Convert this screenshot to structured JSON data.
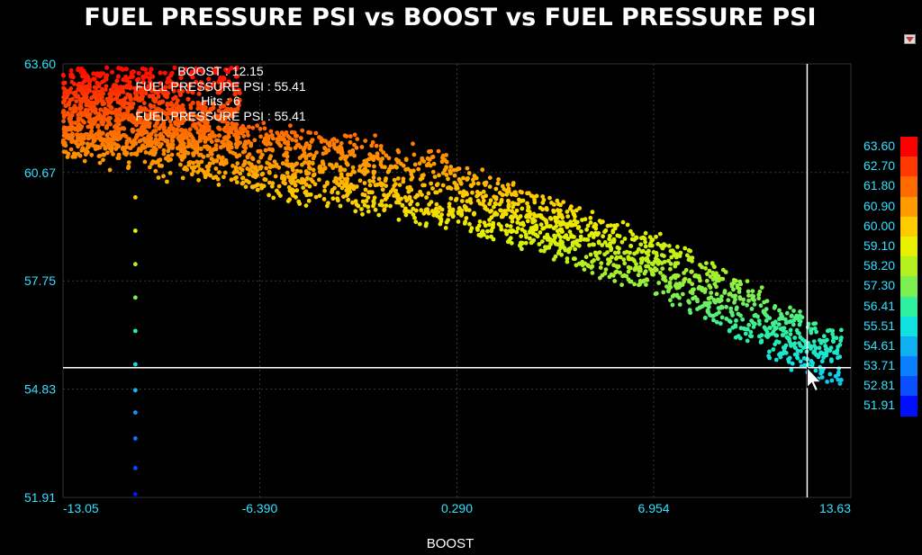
{
  "chart_data": {
    "type": "scatter",
    "title": "FUEL PRESSURE PSI vs BOOST vs FUEL PRESSURE PSI",
    "xlabel": "BOOST",
    "ylabel": "",
    "xlim": [
      -13.05,
      13.63
    ],
    "ylim": [
      51.91,
      63.6
    ],
    "x_ticks": [
      "-13.05",
      "-6.390",
      "0.290",
      "6.954",
      "13.63"
    ],
    "y_ticks": [
      "63.60",
      "60.67",
      "57.75",
      "54.83",
      "51.91"
    ],
    "color_scale": {
      "labels": [
        "63.60",
        "62.70",
        "61.80",
        "60.90",
        "60.00",
        "59.10",
        "58.20",
        "57.30",
        "56.41",
        "55.51",
        "54.61",
        "53.71",
        "52.81",
        "51.91"
      ],
      "colors": [
        "#ff0000",
        "#ff3a00",
        "#ff6a00",
        "#ff9a00",
        "#ffcc00",
        "#e8f000",
        "#b4f020",
        "#7cf050",
        "#30f0a0",
        "#10e0e0",
        "#10b0f0",
        "#0a80ff",
        "#0a50ff",
        "#0010ff"
      ]
    },
    "cursor": {
      "x": 12.15,
      "y": 55.41
    },
    "tooltip": [
      "BOOST : 12.15",
      "FUEL PRESSURE PSI : 55.41",
      "Hits : 6",
      "FUEL PRESSURE PSI : 55.41"
    ],
    "grid": true,
    "legend": "colorbar-right",
    "series": [
      {
        "description_points": "dense cloud sampled along trend",
        "trend": [
          {
            "x": -13.05,
            "y": 62.3
          },
          {
            "x": -10.0,
            "y": 61.8
          },
          {
            "x": -6.0,
            "y": 61.0
          },
          {
            "x": -2.0,
            "y": 60.5
          },
          {
            "x": 0.3,
            "y": 60.1
          },
          {
            "x": 4.0,
            "y": 59.0
          },
          {
            "x": 7.0,
            "y": 58.2
          },
          {
            "x": 10.0,
            "y": 57.0
          },
          {
            "x": 12.5,
            "y": 55.8
          },
          {
            "x": 13.63,
            "y": 55.6
          }
        ],
        "vertical_column_x": -10.6,
        "vertical_column_y": [
          60.0,
          59.1,
          58.2,
          57.3,
          56.4,
          55.5,
          54.8,
          54.2,
          53.5,
          52.7,
          52.0
        ]
      }
    ]
  },
  "toolbar": {
    "menu_icon": "chart-menu-icon"
  }
}
